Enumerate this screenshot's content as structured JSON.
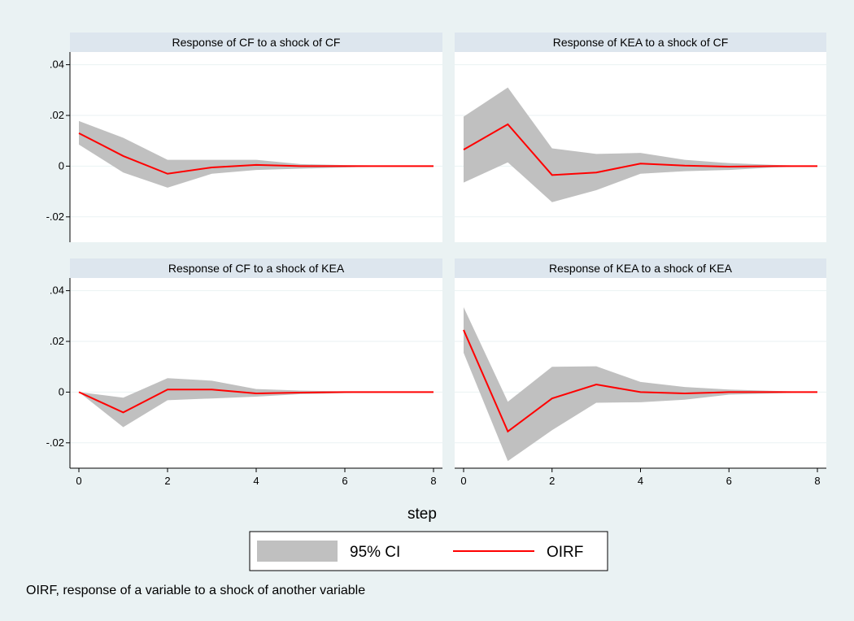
{
  "chart_data": {
    "type": "line",
    "layout": "2x2 facet grid",
    "x_title": "step",
    "xlim": [
      0,
      8
    ],
    "ylim": [
      -0.03,
      0.045
    ],
    "x_ticks": [
      0,
      2,
      4,
      6,
      8
    ],
    "x_tick_labels": [
      "0",
      "2",
      "4",
      "6",
      "8"
    ],
    "y_ticks": [
      -0.02,
      0,
      0.02,
      0.04
    ],
    "y_tick_labels": [
      "-.02",
      "0",
      ".02",
      ".04"
    ],
    "grid": true,
    "legend": {
      "position": "bottom-center",
      "entries": [
        {
          "label": "95% CI",
          "kind": "area",
          "color": "#c0c0c0"
        },
        {
          "label": "OIRF",
          "kind": "line",
          "color": "#ff0000"
        }
      ]
    },
    "note": "OIRF, response of a variable to a shock of another variable",
    "colors": {
      "ci": "#c0c0c0",
      "line": "#ff0000",
      "strip": "#dde6ee",
      "background": "#eaf2f3"
    },
    "panels": [
      {
        "title": "Response of CF to a shock of CF",
        "x": [
          0,
          1,
          2,
          3,
          4,
          5,
          6,
          7,
          8
        ],
        "series": [
          {
            "name": "OIRF",
            "values": [
              0.013,
              0.004,
              -0.003,
              -0.0005,
              0.0005,
              0,
              0,
              0,
              0
            ]
          },
          {
            "name": "95% CI lower",
            "values": [
              0.0085,
              -0.0025,
              -0.0085,
              -0.003,
              -0.0015,
              -0.001,
              -0.0005,
              0,
              0
            ]
          },
          {
            "name": "95% CI upper",
            "values": [
              0.0178,
              0.0112,
              0.0025,
              0.0025,
              0.0025,
              0.0008,
              0.0004,
              0.0002,
              0
            ]
          }
        ]
      },
      {
        "title": "Response of KEA to a shock of CF",
        "x": [
          0,
          1,
          2,
          3,
          4,
          5,
          6,
          7,
          8
        ],
        "series": [
          {
            "name": "OIRF",
            "values": [
              0.0065,
              0.0165,
              -0.0035,
              -0.0025,
              0.001,
              0.0002,
              -0.0002,
              0,
              0
            ]
          },
          {
            "name": "95% CI lower",
            "values": [
              -0.0065,
              0.0015,
              -0.0142,
              -0.0095,
              -0.003,
              -0.002,
              -0.0015,
              -0.0005,
              0
            ]
          },
          {
            "name": "95% CI upper",
            "values": [
              0.0195,
              0.031,
              0.007,
              0.0048,
              0.0052,
              0.0025,
              0.0012,
              0.0005,
              0
            ]
          }
        ]
      },
      {
        "title": "Response of CF to a shock of KEA",
        "x": [
          0,
          1,
          2,
          3,
          4,
          5,
          6,
          7,
          8
        ],
        "series": [
          {
            "name": "OIRF",
            "values": [
              0,
              -0.008,
              0.001,
              0.001,
              -0.0005,
              -0.0002,
              0,
              0,
              0
            ]
          },
          {
            "name": "95% CI lower",
            "values": [
              0,
              -0.0138,
              -0.0032,
              -0.0025,
              -0.0018,
              -0.0008,
              -0.0004,
              -0.0002,
              0
            ]
          },
          {
            "name": "95% CI upper",
            "values": [
              0,
              -0.0022,
              0.0055,
              0.0045,
              0.0012,
              0.0006,
              0.0003,
              0.0001,
              0
            ]
          }
        ]
      },
      {
        "title": "Response of KEA to a shock of KEA",
        "x": [
          0,
          1,
          2,
          3,
          4,
          5,
          6,
          7,
          8
        ],
        "series": [
          {
            "name": "OIRF",
            "values": [
              0.0245,
              -0.0155,
              -0.0025,
              0.003,
              0,
              -0.0005,
              0,
              0,
              0
            ]
          },
          {
            "name": "95% CI lower",
            "values": [
              0.0155,
              -0.0272,
              -0.015,
              -0.0042,
              -0.004,
              -0.003,
              -0.001,
              -0.0005,
              0
            ]
          },
          {
            "name": "95% CI upper",
            "values": [
              0.0335,
              -0.0038,
              0.01,
              0.0102,
              0.004,
              0.002,
              0.001,
              0.0005,
              0
            ]
          }
        ]
      }
    ]
  }
}
